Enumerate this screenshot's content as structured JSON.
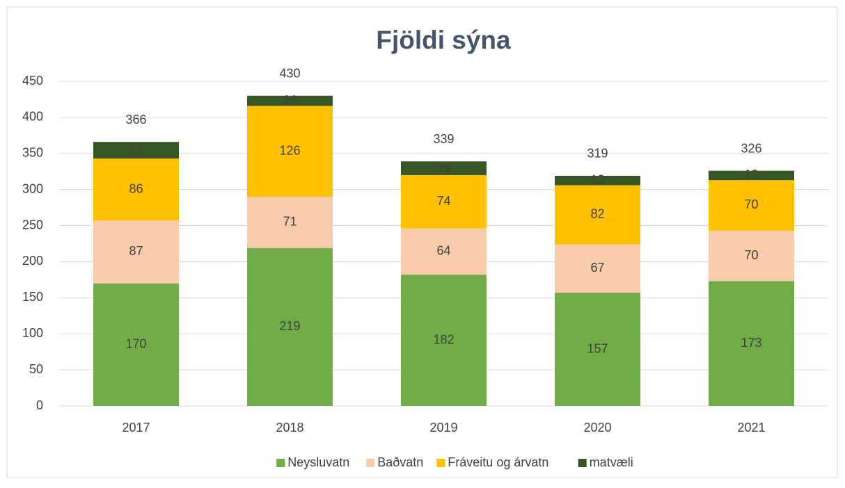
{
  "chart_data": {
    "type": "stacked_bar",
    "title": "Fjöldi sýna",
    "categories": [
      "2017",
      "2018",
      "2019",
      "2020",
      "2021"
    ],
    "series": [
      {
        "name": "Neysluvatn",
        "color": "#70ad47",
        "values": [
          170,
          219,
          182,
          157,
          173
        ]
      },
      {
        "name": "Baðvatn",
        "color": "#f8cbad",
        "values": [
          87,
          71,
          64,
          67,
          70
        ]
      },
      {
        "name": "Fráveitu og árvatn",
        "color": "#ffc000",
        "values": [
          86,
          126,
          74,
          82,
          70
        ]
      },
      {
        "name": "matvæli",
        "color": "#375623",
        "values": [
          23,
          14,
          19,
          13,
          13
        ]
      }
    ],
    "totals": [
      366,
      430,
      339,
      319,
      326
    ],
    "ylim": [
      0,
      450
    ],
    "yticks": [
      0,
      50,
      100,
      150,
      200,
      250,
      300,
      350,
      400,
      450
    ],
    "grid": true,
    "legend": "bottom"
  }
}
